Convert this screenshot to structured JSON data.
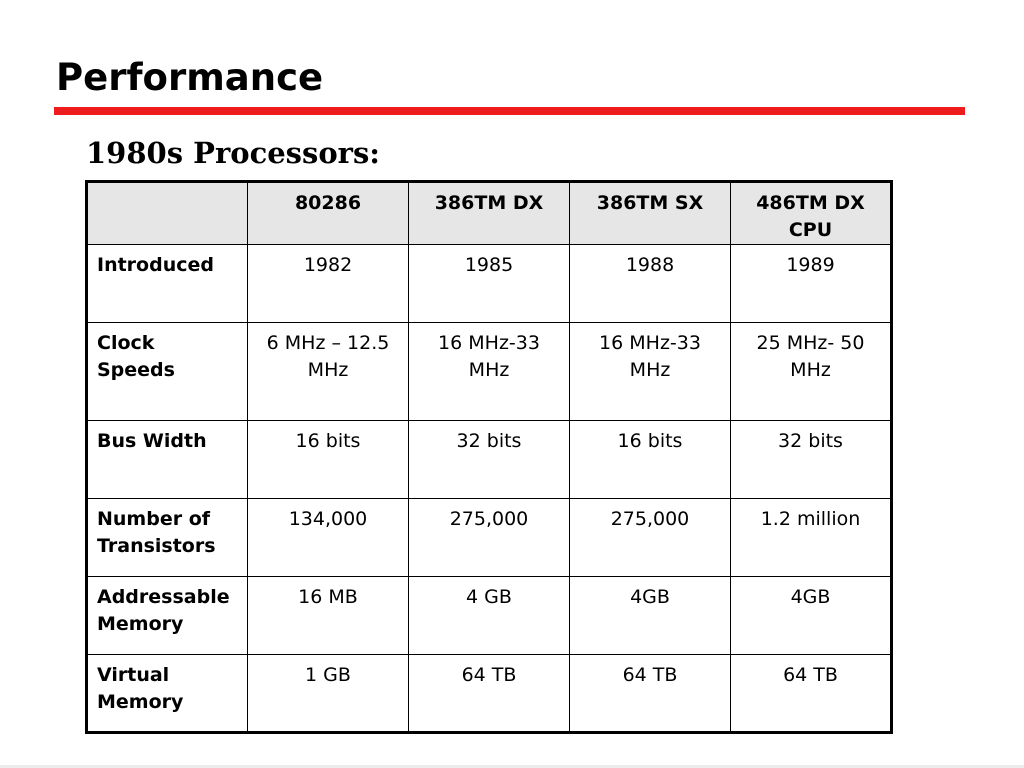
{
  "slide": {
    "title": "Performance",
    "subtitle": "1980s Processors:",
    "accent_color": "#ee1c1c"
  },
  "table": {
    "corner": "",
    "columns": [
      "80286",
      "386TM DX",
      "386TM SX",
      "486TM DX CPU"
    ],
    "rows": [
      {
        "label": "Introduced",
        "values": [
          "1982",
          "1985",
          "1988",
          "1989"
        ]
      },
      {
        "label": "Clock Speeds",
        "values": [
          "6 MHz – 12.5 MHz",
          "16 MHz-33 MHz",
          "16 MHz-33 MHz",
          "25 MHz- 50 MHz"
        ]
      },
      {
        "label": "Bus Width",
        "values": [
          "16 bits",
          "32 bits",
          "16 bits",
          "32 bits"
        ]
      },
      {
        "label": "Number of Transistors",
        "values": [
          "134,000",
          "275,000",
          "275,000",
          "1.2 million"
        ]
      },
      {
        "label": "Addressable Memory",
        "values": [
          "16 MB",
          "4 GB",
          "4GB",
          "4GB"
        ]
      },
      {
        "label": "Virtual Memory",
        "values": [
          "1 GB",
          "64 TB",
          "64 TB",
          "64 TB"
        ]
      }
    ]
  }
}
